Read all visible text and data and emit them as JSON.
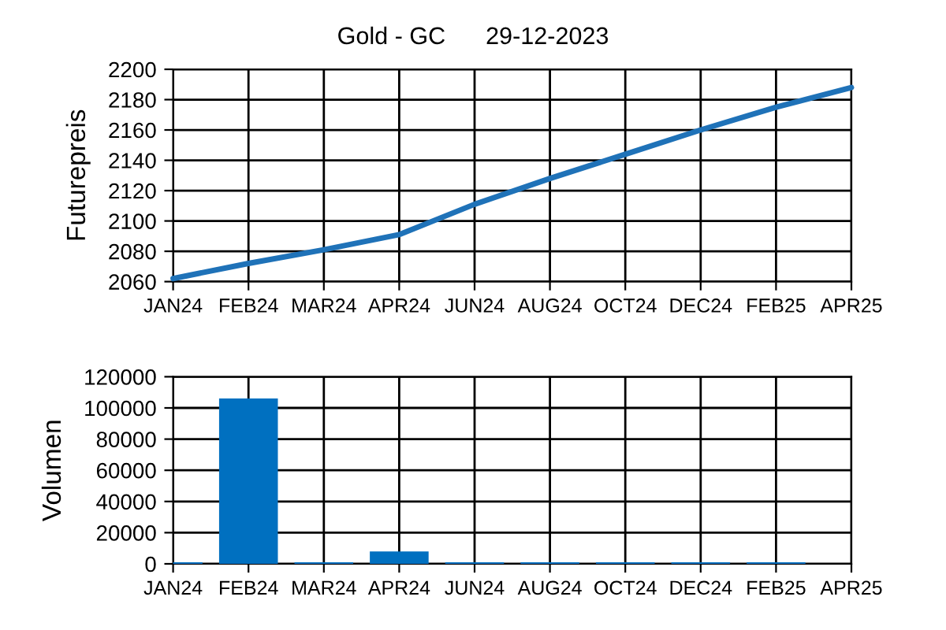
{
  "chart_data": [
    {
      "type": "line",
      "title": "Gold - GC      29-12-2023",
      "ylabel": "Futurepreis",
      "categories": [
        "JAN24",
        "FEB24",
        "MAR24",
        "APR24",
        "JUN24",
        "AUG24",
        "OCT24",
        "DEC24",
        "FEB25",
        "APR25"
      ],
      "series": [
        {
          "color": "#1f72b8",
          "values": [
            2062,
            2072,
            2081,
            2091,
            2111,
            2128,
            2144,
            2160,
            2175,
            2188
          ]
        }
      ],
      "ylim": [
        2060,
        2200
      ],
      "yticks": [
        2060,
        2080,
        2100,
        2120,
        2140,
        2160,
        2180,
        2200
      ],
      "grid": true
    },
    {
      "type": "bar",
      "ylabel": "Volumen",
      "categories": [
        "JAN24",
        "FEB24",
        "MAR24",
        "APR24",
        "JUN24",
        "AUG24",
        "OCT24",
        "DEC24",
        "FEB25",
        "APR25"
      ],
      "series": [
        {
          "color": "#0070c0",
          "values": [
            1000,
            106000,
            1000,
            8000,
            1000,
            1000,
            1000,
            1000,
            1000,
            null
          ]
        }
      ],
      "ylim": [
        0,
        120000
      ],
      "yticks": [
        0,
        20000,
        40000,
        60000,
        80000,
        100000,
        120000
      ],
      "grid": true
    }
  ]
}
